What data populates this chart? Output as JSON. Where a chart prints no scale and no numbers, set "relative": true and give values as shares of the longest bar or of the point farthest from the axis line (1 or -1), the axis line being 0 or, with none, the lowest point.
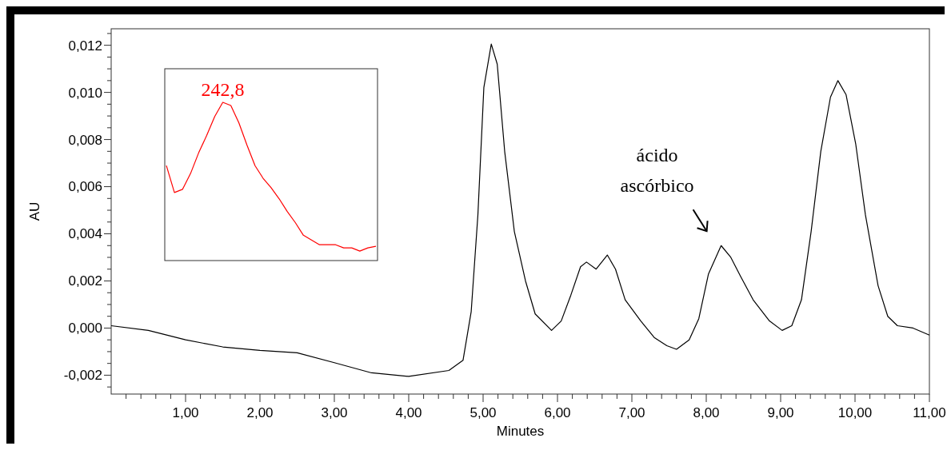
{
  "chart_data": [
    {
      "type": "line",
      "xlabel": "Minutes",
      "ylabel": "AU",
      "xlim": [
        0,
        11
      ],
      "ylim": [
        -0.0028,
        0.0127
      ],
      "xticks": [
        {
          "value": 0.2,
          "label": null
        },
        {
          "value": 0.4,
          "label": null
        },
        {
          "value": 0.6,
          "label": null
        },
        {
          "value": 0.8,
          "label": null
        },
        {
          "value": 1,
          "label": "1,00"
        },
        {
          "value": 1.2,
          "label": null
        },
        {
          "value": 1.4,
          "label": null
        },
        {
          "value": 1.6,
          "label": null
        },
        {
          "value": 1.8,
          "label": null
        },
        {
          "value": 2,
          "label": "2,00"
        },
        {
          "value": 2.2,
          "label": null
        },
        {
          "value": 2.4,
          "label": null
        },
        {
          "value": 2.6,
          "label": null
        },
        {
          "value": 2.8,
          "label": null
        },
        {
          "value": 3,
          "label": "3,00"
        },
        {
          "value": 3.2,
          "label": null
        },
        {
          "value": 3.4,
          "label": null
        },
        {
          "value": 3.6,
          "label": null
        },
        {
          "value": 3.8,
          "label": null
        },
        {
          "value": 4,
          "label": "4,00"
        },
        {
          "value": 4.2,
          "label": null
        },
        {
          "value": 4.4,
          "label": null
        },
        {
          "value": 4.6,
          "label": null
        },
        {
          "value": 4.8,
          "label": null
        },
        {
          "value": 5,
          "label": "5,00"
        },
        {
          "value": 5.2,
          "label": null
        },
        {
          "value": 5.4,
          "label": null
        },
        {
          "value": 5.6,
          "label": null
        },
        {
          "value": 5.8,
          "label": null
        },
        {
          "value": 6,
          "label": "6,00"
        },
        {
          "value": 6.2,
          "label": null
        },
        {
          "value": 6.4,
          "label": null
        },
        {
          "value": 6.6,
          "label": null
        },
        {
          "value": 6.8,
          "label": null
        },
        {
          "value": 7,
          "label": "7,00"
        },
        {
          "value": 7.2,
          "label": null
        },
        {
          "value": 7.4,
          "label": null
        },
        {
          "value": 7.6,
          "label": null
        },
        {
          "value": 7.8,
          "label": null
        },
        {
          "value": 8,
          "label": "8,00"
        },
        {
          "value": 8.2,
          "label": null
        },
        {
          "value": 8.4,
          "label": null
        },
        {
          "value": 8.6,
          "label": null
        },
        {
          "value": 8.8,
          "label": null
        },
        {
          "value": 9,
          "label": "9,00"
        },
        {
          "value": 9.2,
          "label": null
        },
        {
          "value": 9.4,
          "label": null
        },
        {
          "value": 9.6,
          "label": null
        },
        {
          "value": 9.8,
          "label": null
        },
        {
          "value": 10,
          "label": "10,00"
        },
        {
          "value": 10.2,
          "label": null
        },
        {
          "value": 10.4,
          "label": null
        },
        {
          "value": 10.6,
          "label": null
        },
        {
          "value": 10.8,
          "label": null
        },
        {
          "value": 11,
          "label": "11,00"
        }
      ],
      "yticks": [
        {
          "value": -0.0025,
          "label": null
        },
        {
          "value": -0.002,
          "label": "-0,002"
        },
        {
          "value": -0.0015,
          "label": null
        },
        {
          "value": -0.001,
          "label": null
        },
        {
          "value": -0.0005,
          "label": null
        },
        {
          "value": 0,
          "label": "0,000"
        },
        {
          "value": 0.0005,
          "label": null
        },
        {
          "value": 0.001,
          "label": null
        },
        {
          "value": 0.0015,
          "label": null
        },
        {
          "value": 0.002,
          "label": "0,002"
        },
        {
          "value": 0.0025,
          "label": null
        },
        {
          "value": 0.003,
          "label": null
        },
        {
          "value": 0.0035,
          "label": null
        },
        {
          "value": 0.004,
          "label": "0,004"
        },
        {
          "value": 0.0045,
          "label": null
        },
        {
          "value": 0.005,
          "label": null
        },
        {
          "value": 0.0055,
          "label": null
        },
        {
          "value": 0.006,
          "label": "0,006"
        },
        {
          "value": 0.0065,
          "label": null
        },
        {
          "value": 0.007,
          "label": null
        },
        {
          "value": 0.0075,
          "label": null
        },
        {
          "value": 0.008,
          "label": "0,008"
        },
        {
          "value": 0.0085,
          "label": null
        },
        {
          "value": 0.009,
          "label": null
        },
        {
          "value": 0.0095,
          "label": null
        },
        {
          "value": 0.01,
          "label": "0,010"
        },
        {
          "value": 0.0105,
          "label": null
        },
        {
          "value": 0.011,
          "label": null
        },
        {
          "value": 0.0115,
          "label": null
        },
        {
          "value": 0.012,
          "label": "0,012"
        },
        {
          "value": 0.0125,
          "label": null
        }
      ],
      "annotations": [
        {
          "text": "ácido ascórbico",
          "x": 8.2,
          "y": 0.0035
        }
      ],
      "series": [
        {
          "color": "#000000",
          "x": [
            0,
            0.5,
            1,
            1.5,
            2,
            2.5,
            3,
            3.5,
            4,
            4.54,
            4.73,
            4.84,
            4.93,
            5.01,
            5.11,
            5.19,
            5.29,
            5.42,
            5.57,
            5.7,
            5.92,
            6.05,
            6.18,
            6.31,
            6.39,
            6.52,
            6.67,
            6.78,
            6.91,
            7.12,
            7.3,
            7.47,
            7.6,
            7.77,
            7.9,
            8.03,
            8.2,
            8.33,
            8.46,
            8.63,
            8.85,
            9.02,
            9.15,
            9.28,
            9.41,
            9.54,
            9.67,
            9.77,
            9.88,
            10.01,
            10.14,
            10.31,
            10.44,
            10.57,
            10.78,
            11
          ],
          "values": [
            0.0001,
            -0.0001,
            -0.0005,
            -0.0008,
            -0.00095,
            -0.00105,
            -0.00147,
            -0.0019,
            -0.00205,
            -0.0018,
            -0.00137,
            0.0007,
            0.0048,
            0.0102,
            0.01205,
            0.0112,
            0.0075,
            0.0041,
            0.002,
            0.0006,
            -0.0001,
            0.0003,
            0.0014,
            0.0026,
            0.0028,
            0.0025,
            0.0031,
            0.0025,
            0.0012,
            0.0003,
            -0.0004,
            -0.00075,
            -0.0009,
            -0.0005,
            0.0004,
            0.0023,
            0.0035,
            0.003,
            0.0022,
            0.0012,
            0.0003,
            -0.0001,
            0.0001,
            0.0012,
            0.0041,
            0.0075,
            0.0098,
            0.0105,
            0.0099,
            0.0078,
            0.0048,
            0.0018,
            0.0005,
            0.0001,
            0,
            -0.0003
          ]
        }
      ]
    },
    {
      "type": "line",
      "relative": true,
      "categories": [
        null,
        null,
        null,
        null,
        null,
        null,
        null,
        null,
        null,
        null,
        null,
        null,
        null,
        null,
        null,
        null,
        null,
        null,
        null,
        null,
        null,
        null,
        null,
        null,
        null,
        null,
        null
      ],
      "annotations": [
        "242,8"
      ],
      "series": [
        {
          "color": "#ff0000",
          "values": [
            0.6,
            0.43,
            0.45,
            0.55,
            0.68,
            0.79,
            0.91,
            1,
            0.98,
            0.87,
            0.73,
            0.6,
            0.52,
            0.46,
            0.39,
            0.31,
            0.24,
            0.16,
            0.13,
            0.1,
            0.1,
            0.1,
            0.08,
            0.08,
            0.06,
            0.08,
            0.09
          ]
        }
      ]
    }
  ]
}
